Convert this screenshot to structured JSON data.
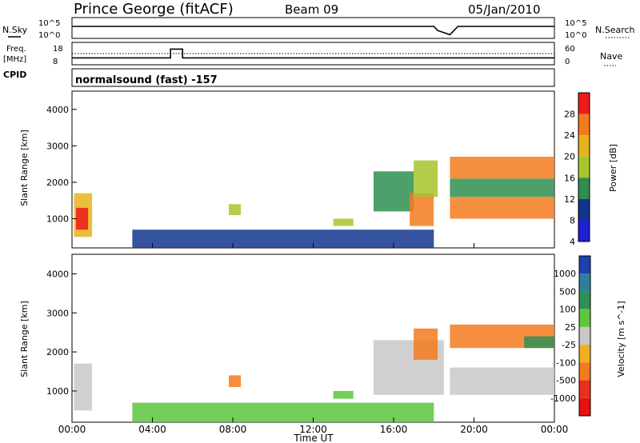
{
  "header": {
    "station": "Prince George (fitACF)",
    "beam": "Beam 09",
    "date": "05/Jan/2010"
  },
  "chart_data": [
    {
      "type": "line",
      "title": "",
      "ylabel_left": "N.Sky",
      "ylabel_right": "N.Search",
      "left_ticks": [
        "10^5",
        "10^0"
      ],
      "right_ticks": [
        "10^5",
        "10^0"
      ],
      "series": [
        {
          "name": "N.Sky",
          "x": [
            0,
            18.0,
            18.2,
            18.8,
            19.2,
            24
          ],
          "values": [
            5,
            5,
            3,
            1,
            5,
            5
          ]
        }
      ]
    },
    {
      "type": "line",
      "ylabel_left": "Freq. [MHz]",
      "ylabel_right": "Nave",
      "left_ticks": [
        "18",
        "8"
      ],
      "right_ticks": [
        "60",
        "0"
      ],
      "series": [
        {
          "name": "Freq.",
          "x": [
            0,
            4.9,
            4.9,
            5.5,
            5.5,
            24
          ],
          "values": [
            11,
            11,
            16,
            16,
            11,
            11
          ]
        },
        {
          "name": "Nave",
          "x": [
            0,
            24
          ],
          "values": [
            35,
            35
          ]
        }
      ]
    },
    {
      "type": "table",
      "label": "CPID",
      "text": "normalsound (fast) -157"
    },
    {
      "type": "heatmap",
      "ylabel": "Slant Range [km]",
      "colorbar_label": "Power [dB]",
      "colorbar_ticks": [
        "28",
        "24",
        "20",
        "16",
        "12",
        "8",
        "4"
      ],
      "colorbar_colors": [
        "#ee1a1a",
        "#f47a1e",
        "#e7b31c",
        "#a7c62c",
        "#2e8f4f",
        "#12358e",
        "#1f1fd6"
      ],
      "yticks": [
        "4000",
        "3000",
        "2000",
        "1000"
      ],
      "ylim": [
        200,
        4500
      ],
      "regions": [
        {
          "t0": 0.1,
          "t1": 1.0,
          "r0": 500,
          "r1": 1700,
          "level": 4
        },
        {
          "t0": 0.2,
          "t1": 0.8,
          "r0": 700,
          "r1": 1300,
          "level": 6
        },
        {
          "t0": 7.8,
          "t1": 8.4,
          "r0": 1100,
          "r1": 1400,
          "level": 3
        },
        {
          "t0": 13.0,
          "t1": 14.0,
          "r0": 800,
          "r1": 1000,
          "level": 3
        },
        {
          "t0": 15.0,
          "t1": 17.0,
          "r0": 1200,
          "r1": 2300,
          "level": 2
        },
        {
          "t0": 16.8,
          "t1": 18.0,
          "r0": 800,
          "r1": 1700,
          "level": 5
        },
        {
          "t0": 17.0,
          "t1": 18.2,
          "r0": 1600,
          "r1": 2600,
          "level": 3
        },
        {
          "t0": 18.8,
          "t1": 24.0,
          "r0": 1000,
          "r1": 1600,
          "level": 5
        },
        {
          "t0": 18.8,
          "t1": 24.0,
          "r0": 2100,
          "r1": 2700,
          "level": 5
        },
        {
          "t0": 18.8,
          "t1": 24.0,
          "r0": 1600,
          "r1": 2100,
          "level": 2
        },
        {
          "t0": 3.0,
          "t1": 18.0,
          "r0": 200,
          "r1": 700,
          "level": 1
        }
      ]
    },
    {
      "type": "heatmap",
      "ylabel": "Slant Range [km]",
      "colorbar_label": "Velocity [m s^-1]",
      "colorbar_ticks": [
        "1000",
        "500",
        "100",
        "25",
        "-25",
        "-100",
        "-500",
        "-1000"
      ],
      "colorbar_colors": [
        "#1f3fb0",
        "#2e7f9c",
        "#2f8f55",
        "#5ec63d",
        "#c8c8c8",
        "#f0b020",
        "#f47a1e",
        "#e8301a",
        "#e81010"
      ],
      "yticks": [
        "4000",
        "3000",
        "2000",
        "1000"
      ],
      "ylim": [
        200,
        4500
      ],
      "xlabel": "Time UT",
      "xticks": [
        "00:00",
        "04:00",
        "08:00",
        "12:00",
        "16:00",
        "20:00",
        "00:00"
      ],
      "regions": [
        {
          "t0": 0.1,
          "t1": 1.0,
          "r0": 500,
          "r1": 1700,
          "level": 4
        },
        {
          "t0": 7.8,
          "t1": 8.4,
          "r0": 1100,
          "r1": 1400,
          "level": 2
        },
        {
          "t0": 13.0,
          "t1": 14.0,
          "r0": 800,
          "r1": 1000,
          "level": 5
        },
        {
          "t0": 15.0,
          "t1": 18.5,
          "r0": 900,
          "r1": 2300,
          "level": 4
        },
        {
          "t0": 17.0,
          "t1": 18.2,
          "r0": 1800,
          "r1": 2600,
          "level": 2
        },
        {
          "t0": 18.8,
          "t1": 24.0,
          "r0": 900,
          "r1": 1600,
          "level": 4
        },
        {
          "t0": 18.8,
          "t1": 24.0,
          "r0": 2100,
          "r1": 2700,
          "level": 2
        },
        {
          "t0": 22.5,
          "t1": 24.0,
          "r0": 2100,
          "r1": 2400,
          "level": 6
        },
        {
          "t0": 3.0,
          "t1": 18.0,
          "r0": 200,
          "r1": 700,
          "level": 5
        }
      ]
    }
  ]
}
